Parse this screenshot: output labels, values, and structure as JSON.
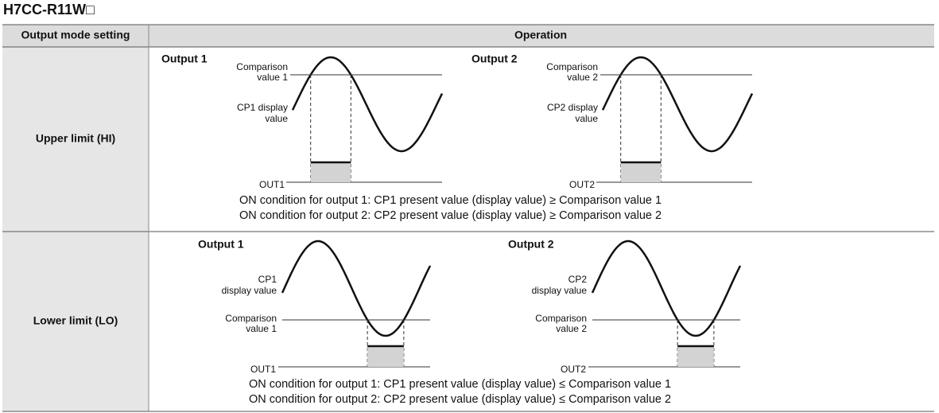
{
  "title": "H7CC-R11W□",
  "table": {
    "headers": [
      "Output mode setting",
      "Operation"
    ],
    "rows": [
      {
        "mode": "Upper limit (HI)",
        "diagrams": [
          {
            "title": "Output 1",
            "comparison_label": [
              "Comparison",
              "value 1"
            ],
            "display_label": [
              "CP1 display",
              "value"
            ],
            "output_label": "OUT1"
          },
          {
            "title": "Output 2",
            "comparison_label": [
              "Comparison",
              "value 2"
            ],
            "display_label": [
              "CP2 display",
              "value"
            ],
            "output_label": "OUT2"
          }
        ],
        "conditions": [
          "ON condition for output 1: CP1 present value (display value) ≥ Comparison value 1",
          "ON condition for output 2: CP2 present value (display value) ≥ Comparison value 2"
        ]
      },
      {
        "mode": "Lower limit (LO)",
        "diagrams": [
          {
            "title": "Output 1",
            "comparison_label": [
              "Comparison",
              "value 1"
            ],
            "display_label": [
              "CP1",
              "display value"
            ],
            "output_label": "OUT1"
          },
          {
            "title": "Output 2",
            "comparison_label": [
              "Comparison",
              "value 2"
            ],
            "display_label": [
              "CP2",
              "display value"
            ],
            "output_label": "OUT2"
          }
        ],
        "conditions": [
          "ON condition for output 1: CP1 present value (display value) ≤ Comparison value 1",
          "ON condition for output 2: CP2 present value (display value) ≤ Comparison value 2"
        ]
      }
    ]
  }
}
